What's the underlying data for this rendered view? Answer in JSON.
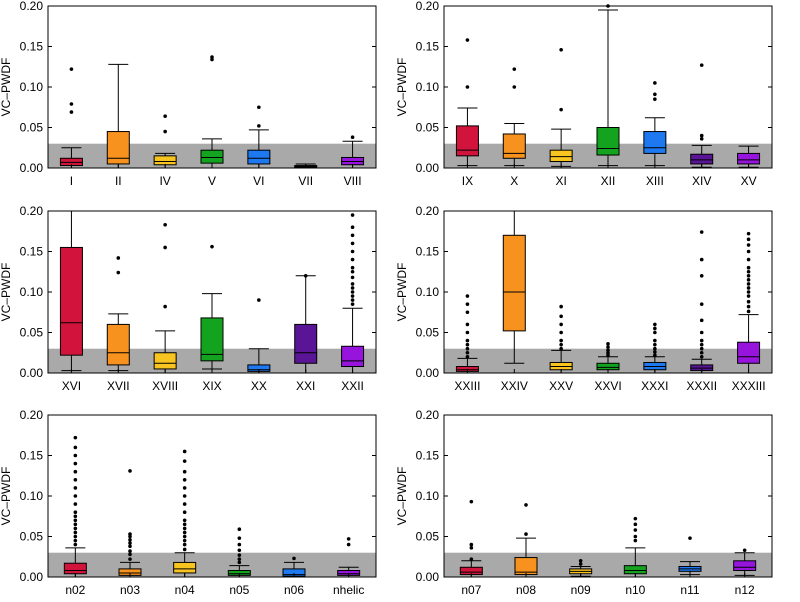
{
  "chart_data": [
    {
      "type": "box",
      "ylabel": "VC–PWDF",
      "ylim": [
        0,
        0.2
      ],
      "yticks": [
        "0.00",
        "0.05",
        "0.10",
        "0.15",
        "0.20"
      ],
      "threshold_band": [
        0,
        0.03
      ],
      "categories": [
        "I",
        "II",
        "IV",
        "V",
        "VI",
        "VII",
        "VIII"
      ],
      "boxes": [
        {
          "min": 0.0,
          "q1": 0.003,
          "median": 0.007,
          "q3": 0.012,
          "max": 0.025,
          "outliers": [
            0.079,
            0.069,
            0.122
          ]
        },
        {
          "min": 0.0,
          "q1": 0.005,
          "median": 0.012,
          "q3": 0.045,
          "max": 0.128,
          "outliers": []
        },
        {
          "min": 0.0,
          "q1": 0.004,
          "median": 0.008,
          "q3": 0.015,
          "max": 0.018,
          "outliers": [
            0.045,
            0.064
          ]
        },
        {
          "min": 0.0,
          "q1": 0.006,
          "median": 0.013,
          "q3": 0.022,
          "max": 0.036,
          "outliers": [
            0.134,
            0.137
          ]
        },
        {
          "min": 0.0,
          "q1": 0.005,
          "median": 0.012,
          "q3": 0.022,
          "max": 0.047,
          "outliers": [
            0.052,
            0.075
          ]
        },
        {
          "min": 0.0,
          "q1": 0.001,
          "median": 0.002,
          "q3": 0.003,
          "max": 0.005,
          "outliers": []
        },
        {
          "min": 0.0,
          "q1": 0.004,
          "median": 0.008,
          "q3": 0.013,
          "max": 0.033,
          "outliers": [
            0.038
          ]
        }
      ]
    },
    {
      "type": "box",
      "ylabel": "VC–PWDF",
      "ylim": [
        0,
        0.2
      ],
      "yticks": [
        "0.00",
        "0.05",
        "0.10",
        "0.15",
        "0.20"
      ],
      "threshold_band": [
        0,
        0.03
      ],
      "categories": [
        "IX",
        "X",
        "XI",
        "XII",
        "XIII",
        "XIV",
        "XV"
      ],
      "boxes": [
        {
          "min": 0.003,
          "q1": 0.015,
          "median": 0.022,
          "q3": 0.052,
          "max": 0.074,
          "outliers": [
            0.1,
            0.158
          ]
        },
        {
          "min": 0.003,
          "q1": 0.012,
          "median": 0.018,
          "q3": 0.042,
          "max": 0.055,
          "outliers": [
            0.1,
            0.122
          ]
        },
        {
          "min": 0.002,
          "q1": 0.008,
          "median": 0.014,
          "q3": 0.022,
          "max": 0.048,
          "outliers": [
            0.072,
            0.146
          ]
        },
        {
          "min": 0.003,
          "q1": 0.016,
          "median": 0.024,
          "q3": 0.05,
          "max": 0.195,
          "outliers": [
            0.202
          ]
        },
        {
          "min": 0.003,
          "q1": 0.018,
          "median": 0.025,
          "q3": 0.045,
          "max": 0.062,
          "outliers": [
            0.085,
            0.091,
            0.105
          ]
        },
        {
          "min": 0.001,
          "q1": 0.005,
          "median": 0.01,
          "q3": 0.017,
          "max": 0.028,
          "outliers": [
            0.036,
            0.04,
            0.127
          ]
        },
        {
          "min": 0.001,
          "q1": 0.005,
          "median": 0.01,
          "q3": 0.018,
          "max": 0.027,
          "outliers": []
        }
      ]
    },
    {
      "type": "box",
      "ylabel": "VC–PWDF",
      "ylim": [
        0,
        0.2
      ],
      "yticks": [
        "0.00",
        "0.05",
        "0.10",
        "0.15",
        "0.20"
      ],
      "threshold_band": [
        0,
        0.03
      ],
      "categories": [
        "XVI",
        "XVII",
        "XVIII",
        "XIX",
        "XX",
        "XXI",
        "XXII"
      ],
      "boxes": [
        {
          "min": 0.003,
          "q1": 0.022,
          "median": 0.062,
          "q3": 0.155,
          "max": 0.2,
          "outliers": []
        },
        {
          "min": 0.003,
          "q1": 0.01,
          "median": 0.025,
          "q3": 0.06,
          "max": 0.073,
          "outliers": [
            0.124,
            0.142
          ]
        },
        {
          "min": 0.0,
          "q1": 0.005,
          "median": 0.012,
          "q3": 0.025,
          "max": 0.052,
          "outliers": [
            0.082,
            0.155,
            0.183
          ]
        },
        {
          "min": 0.005,
          "q1": 0.015,
          "median": 0.023,
          "q3": 0.068,
          "max": 0.098,
          "outliers": [
            0.156
          ]
        },
        {
          "min": 0.0,
          "q1": 0.002,
          "median": 0.004,
          "q3": 0.01,
          "max": 0.03,
          "outliers": [
            0.09
          ]
        },
        {
          "min": 0.0,
          "q1": 0.012,
          "median": 0.025,
          "q3": 0.06,
          "max": 0.12,
          "outliers": [
            0.12
          ]
        },
        {
          "min": 0.0,
          "q1": 0.008,
          "median": 0.015,
          "q3": 0.033,
          "max": 0.08,
          "outliers": [
            0.085,
            0.09,
            0.095,
            0.1,
            0.105,
            0.11,
            0.118,
            0.125,
            0.13,
            0.14,
            0.15,
            0.16,
            0.17,
            0.18,
            0.195
          ]
        }
      ]
    },
    {
      "type": "box",
      "ylabel": "VC–PWDF",
      "ylim": [
        0,
        0.2
      ],
      "yticks": [
        "0.00",
        "0.05",
        "0.10",
        "0.15",
        "0.20"
      ],
      "threshold_band": [
        0,
        0.03
      ],
      "categories": [
        "XXIII",
        "XXIV",
        "XXV",
        "XXVI",
        "XXXI",
        "XXXII",
        "XXXIII"
      ],
      "boxes": [
        {
          "min": 0.0,
          "q1": 0.002,
          "median": 0.004,
          "q3": 0.008,
          "max": 0.018,
          "outliers": [
            0.02,
            0.025,
            0.03,
            0.035,
            0.04,
            0.05,
            0.06,
            0.075,
            0.085,
            0.095
          ]
        },
        {
          "min": 0.012,
          "q1": 0.052,
          "median": 0.1,
          "q3": 0.17,
          "max": 0.2,
          "outliers": []
        },
        {
          "min": 0.0,
          "q1": 0.004,
          "median": 0.008,
          "q3": 0.013,
          "max": 0.028,
          "outliers": [
            0.03,
            0.035,
            0.04,
            0.05,
            0.06,
            0.07,
            0.082
          ]
        },
        {
          "min": 0.0,
          "q1": 0.004,
          "median": 0.007,
          "q3": 0.012,
          "max": 0.02,
          "outliers": [
            0.022,
            0.025,
            0.028,
            0.032,
            0.036
          ]
        },
        {
          "min": 0.0,
          "q1": 0.004,
          "median": 0.008,
          "q3": 0.013,
          "max": 0.02,
          "outliers": [
            0.022,
            0.026,
            0.03,
            0.035,
            0.04,
            0.05,
            0.055,
            0.06
          ]
        },
        {
          "min": 0.0,
          "q1": 0.003,
          "median": 0.006,
          "q3": 0.01,
          "max": 0.017,
          "outliers": [
            0.02,
            0.025,
            0.03,
            0.035,
            0.04,
            0.05,
            0.065,
            0.085,
            0.12,
            0.14,
            0.174
          ]
        },
        {
          "min": 0.0,
          "q1": 0.012,
          "median": 0.02,
          "q3": 0.038,
          "max": 0.072,
          "outliers": [
            0.076,
            0.082,
            0.088,
            0.095,
            0.1,
            0.105,
            0.11,
            0.115,
            0.12,
            0.125,
            0.13,
            0.14,
            0.15,
            0.158,
            0.165,
            0.172
          ]
        }
      ]
    },
    {
      "type": "box",
      "ylabel": "VC–PWDF",
      "ylim": [
        0,
        0.2
      ],
      "yticks": [
        "0.00",
        "0.05",
        "0.10",
        "0.15",
        "0.20"
      ],
      "threshold_band": [
        0,
        0.03
      ],
      "categories": [
        "n02",
        "n03",
        "n04",
        "n05",
        "n06",
        "nhelic"
      ],
      "boxes": [
        {
          "min": 0.0,
          "q1": 0.004,
          "median": 0.008,
          "q3": 0.017,
          "max": 0.036,
          "outliers": [
            0.04,
            0.045,
            0.05,
            0.055,
            0.06,
            0.065,
            0.07,
            0.075,
            0.08,
            0.09,
            0.1,
            0.11,
            0.12,
            0.13,
            0.14,
            0.15,
            0.16,
            0.172
          ]
        },
        {
          "min": 0.0,
          "q1": 0.002,
          "median": 0.005,
          "q3": 0.01,
          "max": 0.018,
          "outliers": [
            0.022,
            0.028,
            0.032,
            0.038,
            0.042,
            0.046,
            0.05,
            0.053,
            0.131
          ]
        },
        {
          "min": 0.0,
          "q1": 0.005,
          "median": 0.01,
          "q3": 0.018,
          "max": 0.03,
          "outliers": [
            0.034,
            0.04,
            0.045,
            0.05,
            0.055,
            0.06,
            0.065,
            0.07,
            0.08,
            0.09,
            0.1,
            0.11,
            0.12,
            0.13,
            0.143,
            0.155
          ]
        },
        {
          "min": 0.0,
          "q1": 0.002,
          "median": 0.004,
          "q3": 0.008,
          "max": 0.014,
          "outliers": [
            0.018,
            0.022,
            0.027,
            0.033,
            0.04,
            0.048,
            0.059
          ]
        },
        {
          "min": 0.0,
          "q1": 0.001,
          "median": 0.003,
          "q3": 0.01,
          "max": 0.018,
          "outliers": [
            0.023
          ]
        },
        {
          "min": 0.0,
          "q1": 0.002,
          "median": 0.004,
          "q3": 0.008,
          "max": 0.012,
          "outliers": [
            0.04,
            0.047
          ]
        }
      ]
    },
    {
      "type": "box",
      "ylabel": "VC–PWDF",
      "ylim": [
        0,
        0.2
      ],
      "yticks": [
        "0.00",
        "0.05",
        "0.10",
        "0.15",
        "0.20"
      ],
      "threshold_band": [
        0,
        0.03
      ],
      "categories": [
        "n07",
        "n08",
        "n09",
        "n10",
        "n11",
        "n12"
      ],
      "boxes": [
        {
          "min": 0.0,
          "q1": 0.003,
          "median": 0.006,
          "q3": 0.012,
          "max": 0.02,
          "outliers": [
            0.022,
            0.036,
            0.04,
            0.093
          ]
        },
        {
          "min": 0.0,
          "q1": 0.003,
          "median": 0.006,
          "q3": 0.024,
          "max": 0.048,
          "outliers": [
            0.053,
            0.089
          ]
        },
        {
          "min": 0.001,
          "q1": 0.004,
          "median": 0.007,
          "q3": 0.01,
          "max": 0.013,
          "outliers": [
            0.016,
            0.02
          ]
        },
        {
          "min": 0.0,
          "q1": 0.004,
          "median": 0.008,
          "q3": 0.014,
          "max": 0.036,
          "outliers": [
            0.045,
            0.05,
            0.058,
            0.065,
            0.072
          ]
        },
        {
          "min": 0.003,
          "q1": 0.007,
          "median": 0.01,
          "q3": 0.013,
          "max": 0.019,
          "outliers": [
            0.048
          ]
        },
        {
          "min": 0.002,
          "q1": 0.008,
          "median": 0.012,
          "q3": 0.02,
          "max": 0.03,
          "outliers": [
            0.033
          ]
        }
      ]
    }
  ],
  "colors": {
    "band": "#a9a9a9",
    "palette": [
      "#d2143c",
      "#f7921e",
      "#f8c520",
      "#14a31e",
      "#1e78f0",
      "#5a1496",
      "#9614dc"
    ],
    "palette6": [
      "#d2143c",
      "#f7921e",
      "#f8c520",
      "#14a31e",
      "#1e78f0",
      "#9614dc"
    ]
  }
}
